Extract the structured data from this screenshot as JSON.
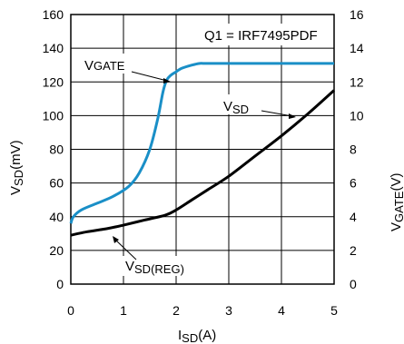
{
  "chart_data": {
    "type": "line",
    "note_label": "Q1 = IRF7495PDF",
    "xlabel": {
      "main": "I",
      "sub": "SD",
      "unit": "(A)"
    },
    "ylabel_left": {
      "main": "V",
      "sub": "SD",
      "unit": "(mV)"
    },
    "ylabel_right": {
      "main": "V",
      "sub": "GATE",
      "unit": "(V)"
    },
    "xlim": [
      0,
      5
    ],
    "ylim_left": [
      0,
      160
    ],
    "ylim_right": [
      0,
      16
    ],
    "x_ticks": [
      "0",
      "1",
      "2",
      "3",
      "4",
      "5"
    ],
    "y_ticks_left": [
      "0",
      "20",
      "40",
      "60",
      "80",
      "100",
      "120",
      "140",
      "160"
    ],
    "y_ticks_right": [
      "0",
      "2",
      "4",
      "6",
      "8",
      "10",
      "12",
      "14",
      "16"
    ],
    "grid": true,
    "series": [
      {
        "name_main": "V",
        "name_sub": "GATE",
        "axis": "right",
        "color": "#1a8fc7",
        "x": [
          0.0,
          0.05,
          0.2,
          0.5,
          0.8,
          1.1,
          1.3,
          1.5,
          1.65,
          1.75,
          1.82,
          1.9,
          2.0,
          2.1,
          2.3,
          2.45,
          2.55,
          3.0,
          4.0,
          5.0
        ],
        "y": [
          3.6,
          4.0,
          4.4,
          4.8,
          5.2,
          5.8,
          6.6,
          8.0,
          9.8,
          11.4,
          12.1,
          12.4,
          12.6,
          12.8,
          13.0,
          13.1,
          13.1,
          13.1,
          13.1,
          13.1
        ]
      },
      {
        "name_main": "V",
        "name_sub": "SD",
        "axis": "left",
        "color": "#000000",
        "x": [
          0.0,
          0.3,
          0.7,
          1.0,
          1.4,
          1.8,
          2.0,
          2.3,
          2.6,
          3.0,
          3.5,
          4.0,
          4.5,
          5.0
        ],
        "y": [
          29,
          31,
          33,
          35,
          38,
          41,
          44,
          50,
          56,
          64,
          76,
          88,
          101,
          115
        ]
      }
    ],
    "annotations": [
      {
        "main": "V",
        "sub": "GATE"
      },
      {
        "main": "V",
        "sub": "SD"
      },
      {
        "main": "V",
        "sub": "SD(REG)"
      }
    ]
  }
}
